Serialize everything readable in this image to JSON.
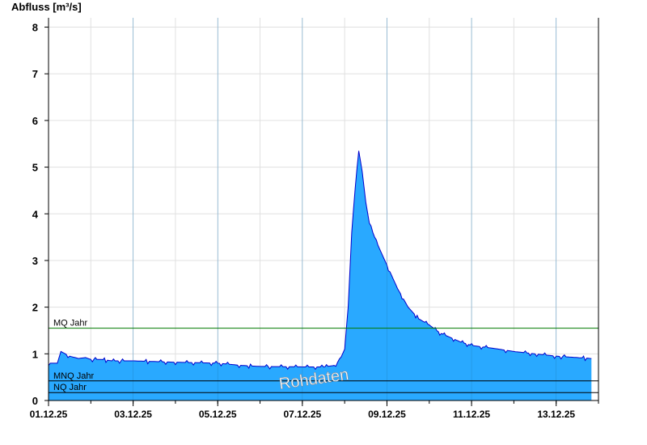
{
  "chart_data": {
    "type": "area",
    "ylabel": "Abfluss [m³/s]",
    "ylim": [
      0,
      8.2
    ],
    "yticks": [
      0,
      1,
      2,
      3,
      4,
      5,
      6,
      7,
      8
    ],
    "xlim": [
      "2025-12-01T00:00",
      "2025-12-14T00:00"
    ],
    "xtick_dates": [
      "2025-12-01",
      "2025-12-03",
      "2025-12-05",
      "2025-12-07",
      "2025-12-09",
      "2025-12-11",
      "2025-12-13"
    ],
    "xtick_labels": [
      "01.12.25",
      "03.12.25",
      "05.12.25",
      "07.12.25",
      "09.12.25",
      "11.12.25",
      "13.12.25"
    ],
    "grid": true,
    "colors": {
      "area": "#29a9ff",
      "line": "#0000cc",
      "mq": "#007a00",
      "ref": "#000000",
      "grid": "#e0e0e0"
    },
    "series": [
      {
        "x": [
          "2025-12-01T00:00",
          "2025-12-01T05:00",
          "2025-12-01T07:00",
          "2025-12-01T12:00",
          "2025-12-01T17:00",
          "2025-12-01T21:00",
          "2025-12-02T00:00",
          "2025-12-02T06:00",
          "2025-12-02T12:00",
          "2025-12-02T18:00",
          "2025-12-03T00:00",
          "2025-12-04T00:00",
          "2025-12-05T00:00",
          "2025-12-05T14:00",
          "2025-12-06T00:00",
          "2025-12-07T00:00",
          "2025-12-07T12:00",
          "2025-12-07T18:00",
          "2025-12-07T21:00",
          "2025-12-08T00:00",
          "2025-12-08T02:00",
          "2025-12-08T04:00",
          "2025-12-08T06:00",
          "2025-12-08T08:00",
          "2025-12-08T10:00",
          "2025-12-08T12:00",
          "2025-12-08T14:00",
          "2025-12-08T18:00",
          "2025-12-09T00:00",
          "2025-12-09T06:00",
          "2025-12-09T12:00",
          "2025-12-09T18:00",
          "2025-12-10T00:00",
          "2025-12-10T06:00",
          "2025-12-10T12:00",
          "2025-12-10T18:00",
          "2025-12-11T00:00",
          "2025-12-11T12:00",
          "2025-12-12T00:00",
          "2025-12-12T12:00",
          "2025-12-13T00:00",
          "2025-12-13T12:00",
          "2025-12-13T20:00"
        ],
        "values": [
          0.8,
          0.8,
          1.05,
          0.95,
          0.9,
          0.92,
          0.88,
          0.88,
          0.85,
          0.85,
          0.85,
          0.82,
          0.8,
          0.75,
          0.73,
          0.72,
          0.72,
          0.75,
          0.85,
          1.1,
          2.0,
          3.6,
          4.6,
          5.35,
          4.9,
          4.25,
          3.8,
          3.4,
          2.9,
          2.4,
          2.0,
          1.75,
          1.62,
          1.45,
          1.35,
          1.25,
          1.18,
          1.12,
          1.05,
          1.0,
          0.95,
          0.92,
          0.9
        ]
      }
    ],
    "reference_lines": [
      {
        "label": "MQ Jahr",
        "value": 1.55
      },
      {
        "label": "MNQ Jahr",
        "value": 0.42
      },
      {
        "label": "NQ Jahr",
        "value": 0.17
      }
    ],
    "watermark": "Rohdaten"
  }
}
